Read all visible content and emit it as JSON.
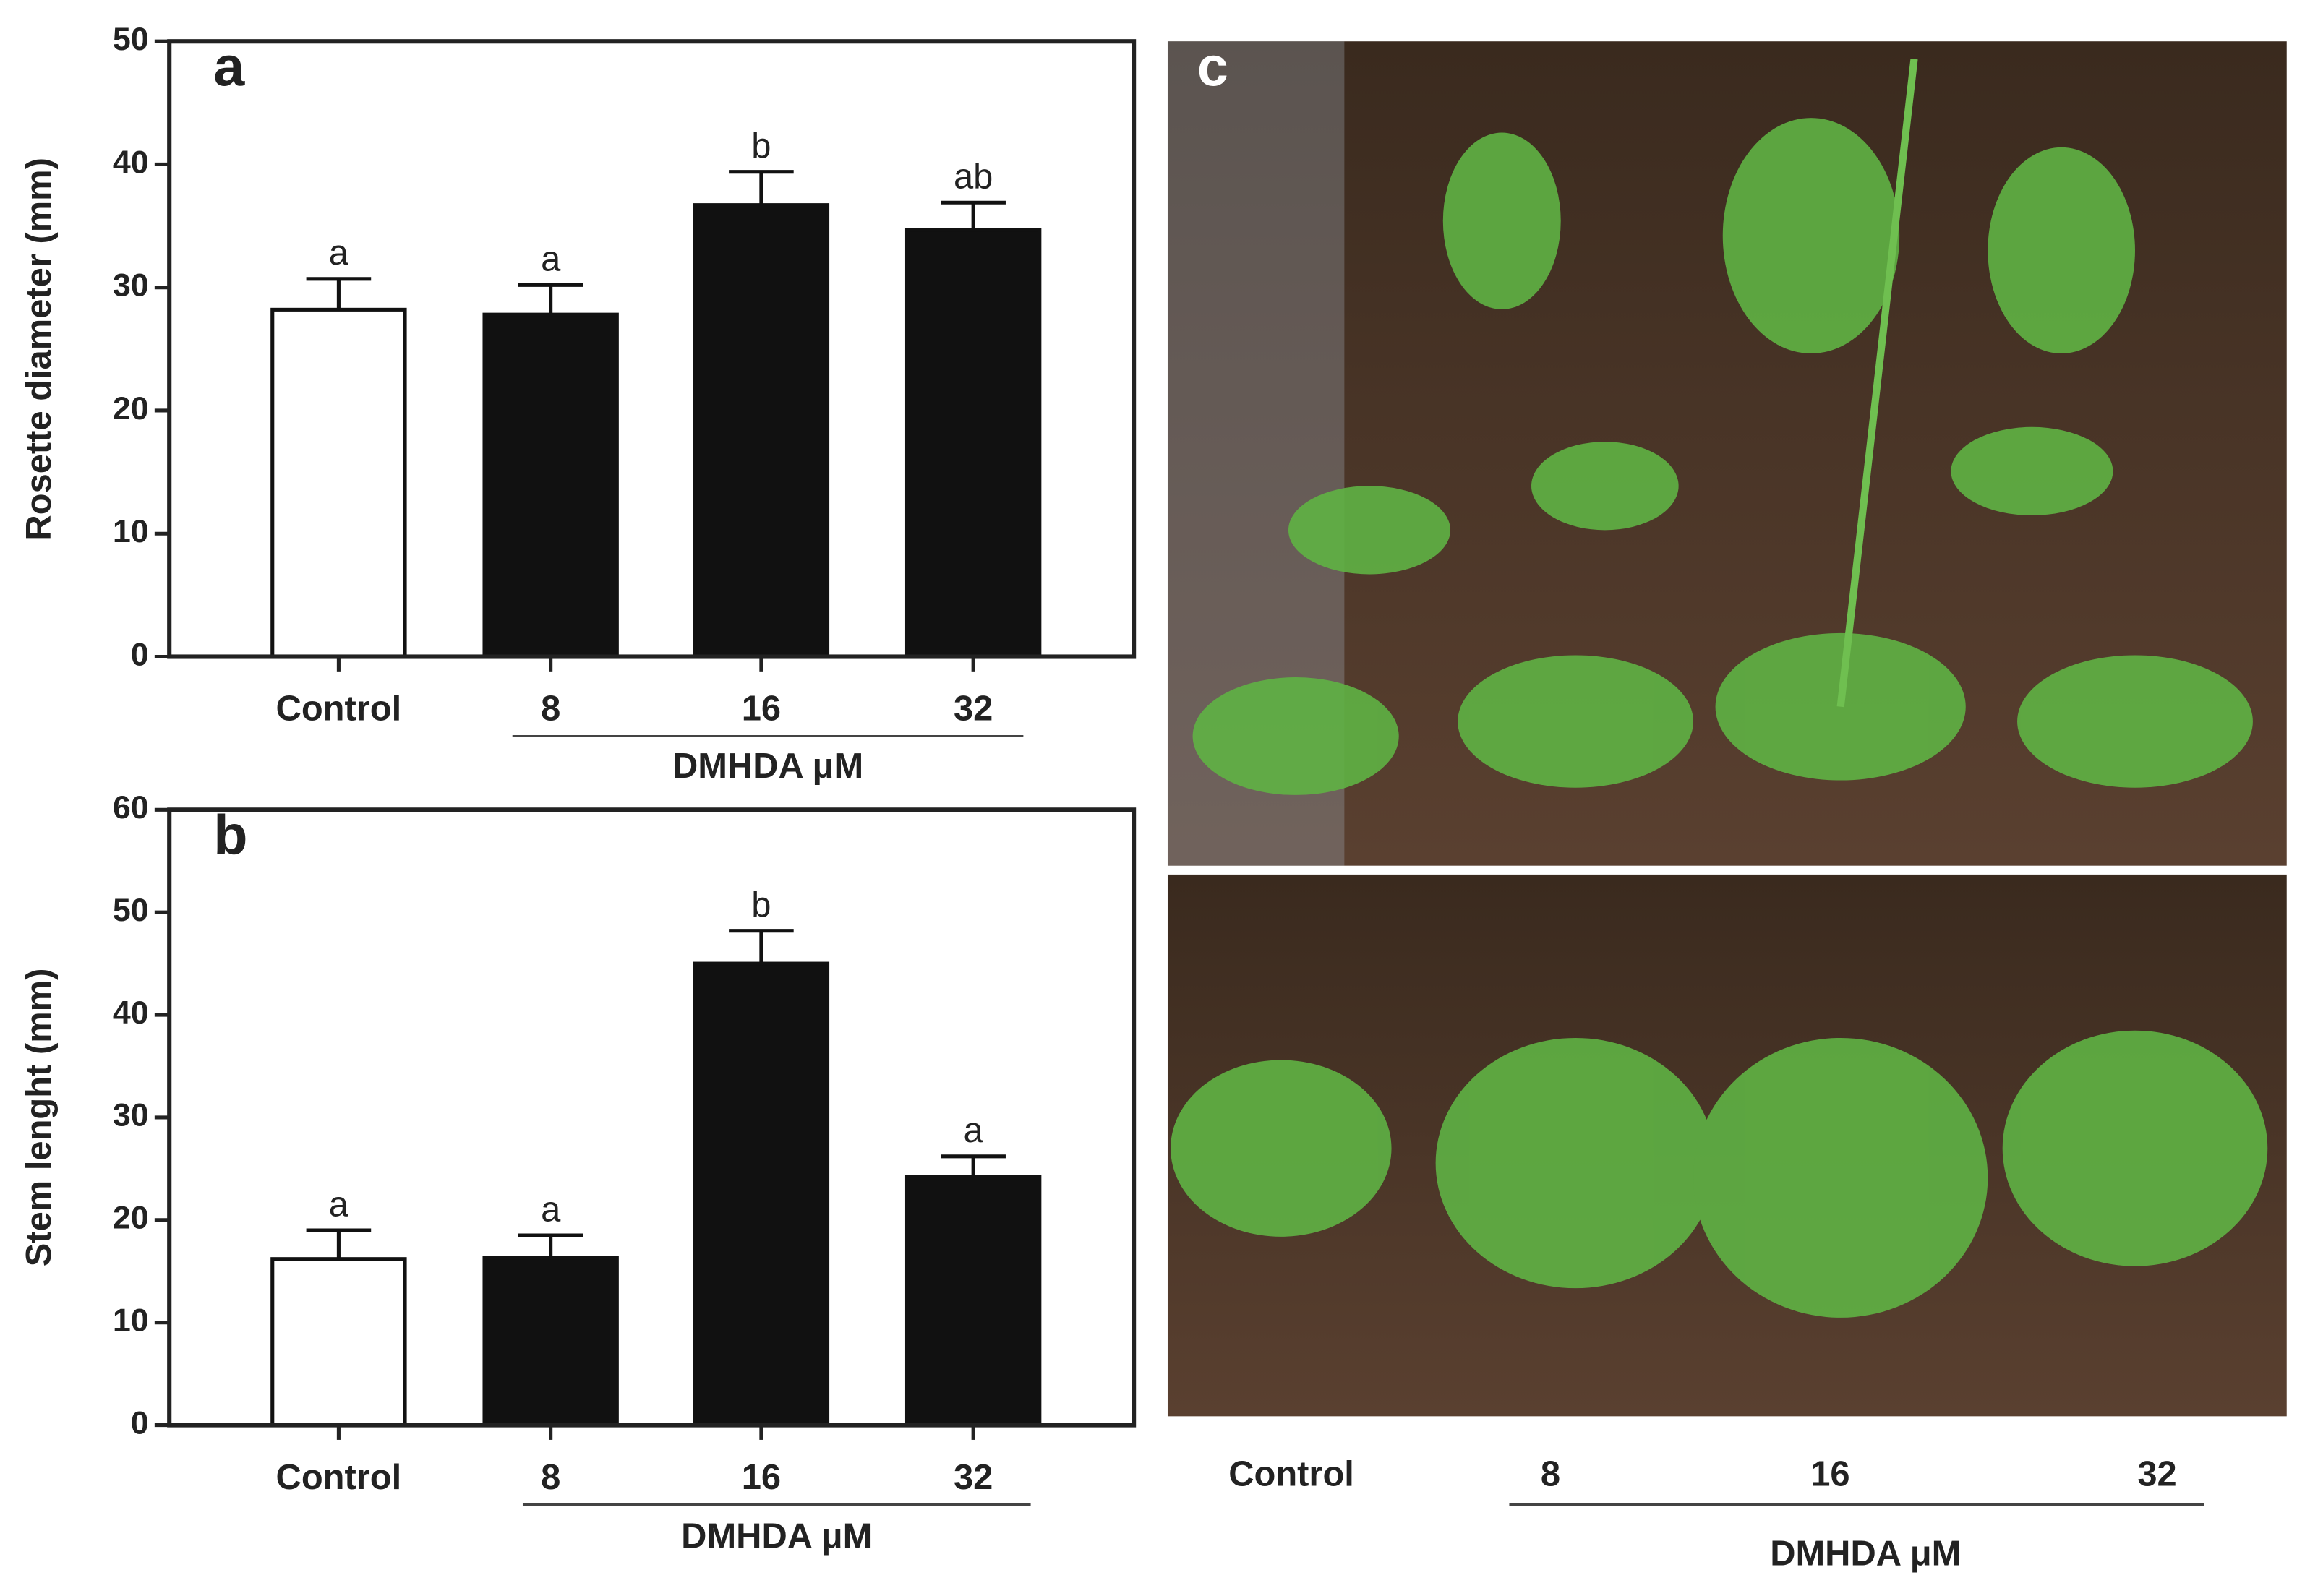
{
  "chart_data": [
    {
      "type": "bar",
      "panel_label": "a",
      "ylabel": "Rosette diameter (mm)",
      "categories": [
        "Control",
        "8",
        "16",
        "32"
      ],
      "group_label": "DMHDA μM",
      "values": [
        28.2,
        27.8,
        36.7,
        34.7
      ],
      "errors": [
        2.5,
        2.4,
        2.7,
        2.2
      ],
      "significance_letters": [
        "a",
        "a",
        "b",
        "ab"
      ],
      "colors": [
        "#ffffff",
        "#111111",
        "#111111",
        "#111111"
      ],
      "ylim": [
        0,
        50
      ],
      "yticks": [
        0,
        10,
        20,
        30,
        40,
        50
      ]
    },
    {
      "type": "bar",
      "panel_label": "b",
      "ylabel": "Stem lenght (mm)",
      "categories": [
        "Control",
        "8",
        "16",
        "32"
      ],
      "group_label": "DMHDA μM",
      "values": [
        16.2,
        16.3,
        45.0,
        24.2
      ],
      "errors": [
        2.8,
        2.2,
        3.2,
        2.0
      ],
      "significance_letters": [
        "a",
        "a",
        "b",
        "a"
      ],
      "colors": [
        "#ffffff",
        "#111111",
        "#111111",
        "#111111"
      ],
      "ylim": [
        0,
        60
      ],
      "yticks": [
        0,
        10,
        20,
        30,
        40,
        50,
        60
      ]
    }
  ],
  "photo_panel": {
    "panel_label": "c",
    "categories": [
      "Control",
      "8",
      "16",
      "32"
    ],
    "group_label": "DMHDA μM"
  }
}
